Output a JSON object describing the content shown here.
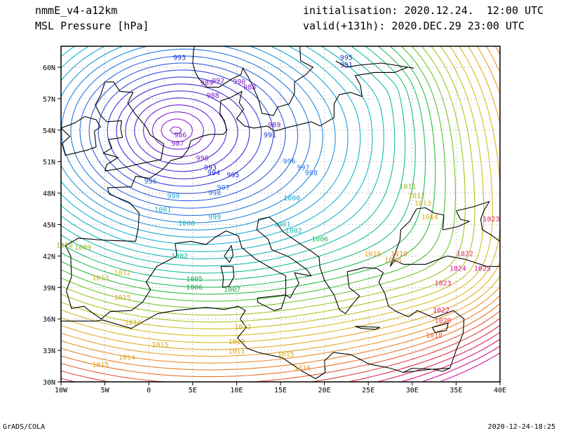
{
  "header": {
    "model": "nmmE_v4-a12km",
    "field": "MSL Pressure [hPa]",
    "initialisation": "initialisation: 2020.12.24.  12:00 UTC",
    "valid": "valid(+131h): 2020.DEC.29 23:00 UTC"
  },
  "footer": {
    "left": "GrADS/COLA",
    "right": "2020-12-24-18:25"
  },
  "map": {
    "lon_range": [
      -10,
      40
    ],
    "lat_range": [
      30,
      62
    ],
    "lon_ticks": [
      "10W",
      "5W",
      "0",
      "5E",
      "10E",
      "15E",
      "20E",
      "25E",
      "30E",
      "35E",
      "40E"
    ],
    "lat_ticks": [
      "30N",
      "33N",
      "36N",
      "39N",
      "42N",
      "45N",
      "48N",
      "51N",
      "54N",
      "57N",
      "60N"
    ],
    "grid": "dotted",
    "low_center": {
      "name": "low over North Sea",
      "value_hpa": 986
    },
    "high_center": {
      "name": "high over eastern Mediterranean",
      "value_hpa": 1025
    },
    "contour_interval_hpa": 1,
    "contour_labels": [
      {
        "text": "993",
        "lon": 3.5,
        "lat": 60.7,
        "color": "#2030d0"
      },
      {
        "text": "995",
        "lon": 22.5,
        "lat": 60.7,
        "color": "#2030d0"
      },
      {
        "text": "991",
        "lon": 22.5,
        "lat": 60.0,
        "color": "#2030d0"
      },
      {
        "text": "992",
        "lon": 7.9,
        "lat": 58.5,
        "color": "#7a1dc8"
      },
      {
        "text": "990",
        "lon": 10.3,
        "lat": 58.4,
        "color": "#7a1dc8"
      },
      {
        "text": "989",
        "lon": 6.6,
        "lat": 58.3,
        "color": "#7a1dc8"
      },
      {
        "text": "988",
        "lon": 11.5,
        "lat": 57.9,
        "color": "#7a1dc8"
      },
      {
        "text": "988",
        "lon": 7.3,
        "lat": 57.1,
        "color": "#7a1dc8"
      },
      {
        "text": "986",
        "lon": 3.6,
        "lat": 53.3,
        "color": "#7a1dc8"
      },
      {
        "text": "987",
        "lon": 3.3,
        "lat": 52.5,
        "color": "#7a1dc8"
      },
      {
        "text": "989",
        "lon": 14.3,
        "lat": 54.3,
        "color": "#7a1dc8"
      },
      {
        "text": "991",
        "lon": 13.8,
        "lat": 53.3,
        "color": "#2030d0"
      },
      {
        "text": "990",
        "lon": 6.1,
        "lat": 51.1,
        "color": "#7a1dc8"
      },
      {
        "text": "993",
        "lon": 7.0,
        "lat": 50.2,
        "color": "#2030d0"
      },
      {
        "text": "994",
        "lon": 7.4,
        "lat": 49.7,
        "color": "#2030d0"
      },
      {
        "text": "995",
        "lon": 9.6,
        "lat": 49.5,
        "color": "#2030d0"
      },
      {
        "text": "996",
        "lon": 0.2,
        "lat": 48.9,
        "color": "#2d74d8"
      },
      {
        "text": "996",
        "lon": 16.0,
        "lat": 50.8,
        "color": "#2d74d8"
      },
      {
        "text": "997",
        "lon": 17.6,
        "lat": 50.2,
        "color": "#2d74d8"
      },
      {
        "text": "998",
        "lon": 18.5,
        "lat": 49.7,
        "color": "#2d74d8"
      },
      {
        "text": "997",
        "lon": 8.5,
        "lat": 48.3,
        "color": "#2d74d8"
      },
      {
        "text": "998",
        "lon": 7.5,
        "lat": 47.8,
        "color": "#2d74d8"
      },
      {
        "text": "999",
        "lon": 2.8,
        "lat": 47.5,
        "color": "#19a6d6"
      },
      {
        "text": "1000",
        "lon": 16.3,
        "lat": 47.3,
        "color": "#19a6d6"
      },
      {
        "text": "1001",
        "lon": 1.6,
        "lat": 46.2,
        "color": "#16b8b8"
      },
      {
        "text": "999",
        "lon": 7.5,
        "lat": 45.5,
        "color": "#19a6d6"
      },
      {
        "text": "1000",
        "lon": 4.3,
        "lat": 44.9,
        "color": "#16b8b8"
      },
      {
        "text": "1001",
        "lon": 15.2,
        "lat": 44.8,
        "color": "#16b8b8"
      },
      {
        "text": "1002",
        "lon": 16.5,
        "lat": 44.2,
        "color": "#16b8b8"
      },
      {
        "text": "1002",
        "lon": 3.5,
        "lat": 41.8,
        "color": "#18b89a"
      },
      {
        "text": "1006",
        "lon": 19.5,
        "lat": 43.4,
        "color": "#1ec050"
      },
      {
        "text": "1005",
        "lon": 5.2,
        "lat": 39.6,
        "color": "#1ea846"
      },
      {
        "text": "1006",
        "lon": 5.2,
        "lat": 38.8,
        "color": "#1ea846"
      },
      {
        "text": "1007",
        "lon": 9.5,
        "lat": 38.6,
        "color": "#1ea846"
      },
      {
        "text": "1010",
        "lon": -9.6,
        "lat": 42.8,
        "color": "#9cb81c"
      },
      {
        "text": "1009",
        "lon": -7.5,
        "lat": 42.6,
        "color": "#9cb81c"
      },
      {
        "text": "1012",
        "lon": -3.0,
        "lat": 40.2,
        "color": "#cfb21a"
      },
      {
        "text": "1013",
        "lon": -5.5,
        "lat": 39.7,
        "color": "#cfb21a"
      },
      {
        "text": "1015",
        "lon": -3.0,
        "lat": 37.8,
        "color": "#d8a818"
      },
      {
        "text": "1014",
        "lon": -1.8,
        "lat": 35.4,
        "color": "#d8a818"
      },
      {
        "text": "1015",
        "lon": 1.3,
        "lat": 33.3,
        "color": "#d8a818"
      },
      {
        "text": "1014",
        "lon": -2.5,
        "lat": 32.1,
        "color": "#d8a818"
      },
      {
        "text": "1015",
        "lon": -5.5,
        "lat": 31.4,
        "color": "#d8a818"
      },
      {
        "text": "1012",
        "lon": 10.7,
        "lat": 35.0,
        "color": "#d8a818"
      },
      {
        "text": "1013",
        "lon": 10.0,
        "lat": 33.6,
        "color": "#d8a818"
      },
      {
        "text": "1011",
        "lon": 10.0,
        "lat": 32.7,
        "color": "#d8a818"
      },
      {
        "text": "1015",
        "lon": 15.6,
        "lat": 32.4,
        "color": "#d8a818"
      },
      {
        "text": "1016",
        "lon": 17.5,
        "lat": 31.1,
        "color": "#e8a020"
      },
      {
        "text": "1011",
        "lon": 29.5,
        "lat": 48.4,
        "color": "#9cb81c"
      },
      {
        "text": "1012",
        "lon": 30.5,
        "lat": 47.5,
        "color": "#cfb21a"
      },
      {
        "text": "1013",
        "lon": 31.2,
        "lat": 46.8,
        "color": "#cfb21a"
      },
      {
        "text": "1014",
        "lon": 32.0,
        "lat": 45.5,
        "color": "#d8a818"
      },
      {
        "text": "1016",
        "lon": 25.5,
        "lat": 42.0,
        "color": "#e8a020"
      },
      {
        "text": "1018",
        "lon": 27.8,
        "lat": 41.4,
        "color": "#e88a20"
      },
      {
        "text": "1019",
        "lon": 28.5,
        "lat": 42.0,
        "color": "#e88a20"
      },
      {
        "text": "1023",
        "lon": 39.0,
        "lat": 45.3,
        "color": "#e02060"
      },
      {
        "text": "1022",
        "lon": 36.0,
        "lat": 42.0,
        "color": "#e02060"
      },
      {
        "text": "1024",
        "lon": 35.2,
        "lat": 40.6,
        "color": "#d0108e"
      },
      {
        "text": "1025",
        "lon": 38.0,
        "lat": 40.6,
        "color": "#d0108e"
      },
      {
        "text": "1023",
        "lon": 33.5,
        "lat": 39.2,
        "color": "#e02060"
      },
      {
        "text": "1022",
        "lon": 33.3,
        "lat": 36.6,
        "color": "#e02060"
      },
      {
        "text": "1020",
        "lon": 33.5,
        "lat": 35.6,
        "color": "#e84040"
      },
      {
        "text": "1018",
        "lon": 32.5,
        "lat": 34.2,
        "color": "#e86030"
      }
    ]
  }
}
